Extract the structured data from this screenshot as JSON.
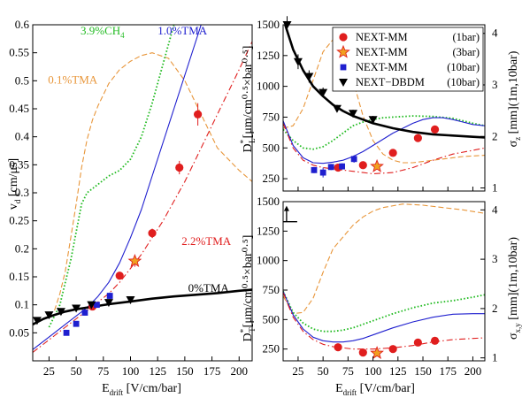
{
  "chart_data": [
    {
      "type": "line",
      "panel": "left",
      "xlabel": "E",
      "xlabel_sub": "drift",
      "xlabel_unit": " [V/cm/bar]",
      "ylabel": "v",
      "ylabel_sub": "d",
      "ylabel_unit": " [cm/μs]",
      "xlim": [
        10,
        212
      ],
      "ylim": [
        0,
        0.6
      ],
      "xticks": [
        25,
        50,
        75,
        100,
        125,
        150,
        175,
        200
      ],
      "yticks": [
        0.05,
        0.1,
        0.15,
        0.2,
        0.25,
        0.3,
        0.35,
        0.4,
        0.45,
        0.5,
        0.55,
        0.6
      ],
      "annotations": [
        {
          "text": "3.9%CH",
          "sub": "4",
          "color": "#22bb22",
          "x": 54,
          "y": 0.583
        },
        {
          "text": "1.0%TMA",
          "sub": "",
          "color": "#1f1fcf",
          "x": 125,
          "y": 0.583
        },
        {
          "text": "0.1%TMA",
          "sub": "",
          "color": "#e8963a",
          "x": 24,
          "y": 0.495
        },
        {
          "text": "2.2%TMA",
          "sub": "",
          "color": "#e01e1e",
          "x": 147,
          "y": 0.207
        },
        {
          "text": "0%TMA",
          "sub": "",
          "color": "#000000",
          "x": 153,
          "y": 0.123
        }
      ],
      "series": [
        {
          "color": "#e8963a",
          "style": "dashed",
          "width": 1.1,
          "x": [
            30,
            35,
            40,
            45,
            50,
            55,
            60,
            65,
            70,
            80,
            90,
            100,
            110,
            120,
            135,
            150,
            165,
            180,
            200,
            212
          ],
          "y": [
            0.09,
            0.12,
            0.16,
            0.22,
            0.28,
            0.345,
            0.395,
            0.43,
            0.455,
            0.495,
            0.52,
            0.535,
            0.545,
            0.55,
            0.54,
            0.5,
            0.44,
            0.38,
            0.34,
            0.32
          ]
        },
        {
          "color": "#22bb22",
          "style": "dotted",
          "width": 1.8,
          "x": [
            25,
            30,
            35,
            40,
            45,
            50,
            55,
            60,
            70,
            80,
            90,
            100,
            110,
            120,
            130,
            140
          ],
          "y": [
            0.06,
            0.08,
            0.1,
            0.14,
            0.18,
            0.23,
            0.28,
            0.3,
            0.315,
            0.33,
            0.34,
            0.36,
            0.4,
            0.46,
            0.53,
            0.6
          ]
        },
        {
          "color": "#1f1fcf",
          "style": "solid",
          "width": 1.1,
          "x": [
            10,
            20,
            30,
            40,
            50,
            60,
            70,
            80,
            90,
            100,
            110,
            120,
            130,
            140,
            150,
            160,
            165
          ],
          "y": [
            0.02,
            0.035,
            0.05,
            0.065,
            0.08,
            0.095,
            0.115,
            0.14,
            0.175,
            0.22,
            0.27,
            0.33,
            0.39,
            0.45,
            0.51,
            0.57,
            0.6
          ]
        },
        {
          "color": "#e01e1e",
          "style": "dashdot",
          "width": 1.1,
          "x": [
            10,
            20,
            30,
            40,
            50,
            60,
            70,
            80,
            90,
            100,
            110,
            120,
            130,
            140,
            150,
            160,
            170,
            180,
            190,
            200,
            212
          ],
          "y": [
            0.015,
            0.03,
            0.045,
            0.06,
            0.075,
            0.09,
            0.105,
            0.12,
            0.14,
            0.165,
            0.19,
            0.22,
            0.25,
            0.285,
            0.32,
            0.36,
            0.4,
            0.44,
            0.48,
            0.52,
            0.57
          ]
        },
        {
          "color": "#000000",
          "style": "solid",
          "width": 2.6,
          "x": [
            10,
            20,
            30,
            40,
            50,
            60,
            70,
            80,
            100,
            120,
            140,
            160,
            180,
            200,
            212
          ],
          "y": [
            0.065,
            0.075,
            0.082,
            0.088,
            0.092,
            0.095,
            0.098,
            0.101,
            0.106,
            0.111,
            0.115,
            0.118,
            0.121,
            0.125,
            0.127
          ]
        }
      ],
      "points": [
        {
          "label": "NEXT-MM (1bar)",
          "marker": "circle",
          "color": "#e01e1e",
          "x": [
            65,
            90,
            120,
            145,
            162
          ],
          "y": [
            0.097,
            0.152,
            0.228,
            0.345,
            0.44
          ],
          "yerr": [
            0.005,
            0.006,
            0.008,
            0.012,
            0.02
          ]
        },
        {
          "label": "NEXT-MM (3bar)",
          "marker": "star",
          "color": "#f0a020",
          "edge": "#e01e1e",
          "x": [
            104
          ],
          "y": [
            0.178
          ],
          "yerr": [
            0.01
          ]
        },
        {
          "label": "NEXT-MM (10bar)",
          "marker": "square",
          "color": "#1f1fcf",
          "x": [
            41,
            50,
            58,
            69,
            81
          ],
          "y": [
            0.05,
            0.066,
            0.086,
            0.1,
            0.116
          ],
          "yerr": [
            0.004,
            0.004,
            0.005,
            0.005,
            0.006
          ]
        },
        {
          "label": "NEXT-DBDM (10bar)",
          "marker": "triangle-down",
          "color": "#000000",
          "x": [
            14,
            25,
            36,
            50,
            64,
            80,
            100
          ],
          "y": [
            0.072,
            0.082,
            0.088,
            0.094,
            0.1,
            0.104,
            0.109
          ],
          "yerr": [
            0.003,
            0.003,
            0.003,
            0.003,
            0.003,
            0.003,
            0.003
          ]
        }
      ]
    },
    {
      "type": "line",
      "panel": "top-right",
      "ylabel": "D",
      "ylabel_sup": "*",
      "ylabel_sub": "L",
      "ylabel_unit": "[μm/cm⁰·⁵×bar⁰·⁵]",
      "y2label": "σ",
      "y2label_sub": "z",
      "y2label_unit": " [mm](1m,10bar)",
      "xlim": [
        10,
        212
      ],
      "ylim": [
        150,
        1500
      ],
      "yticks": [
        250,
        500,
        750,
        1000,
        1250,
        1500
      ],
      "y2ticks": [
        1,
        2,
        3,
        4
      ],
      "legend_position": "top-right",
      "series": [
        {
          "color": "#e8963a",
          "style": "dashed",
          "width": 1.1,
          "x": [
            10,
            20,
            30,
            40,
            50,
            60,
            70,
            80,
            90,
            100,
            110,
            120,
            130,
            140,
            150,
            170,
            190,
            212
          ],
          "y": [
            660,
            680,
            820,
            1050,
            1280,
            1380,
            1300,
            1050,
            760,
            560,
            450,
            400,
            380,
            380,
            390,
            410,
            430,
            440
          ]
        },
        {
          "color": "#22bb22",
          "style": "dotted",
          "width": 1.8,
          "x": [
            10,
            20,
            30,
            40,
            50,
            60,
            70,
            80,
            90,
            100,
            110,
            120,
            140,
            160,
            180,
            200,
            212
          ],
          "y": [
            650,
            560,
            500,
            490,
            510,
            560,
            620,
            680,
            710,
            730,
            745,
            750,
            760,
            755,
            740,
            700,
            680
          ]
        },
        {
          "color": "#1f1fcf",
          "style": "solid",
          "width": 1.1,
          "x": [
            10,
            20,
            30,
            40,
            50,
            60,
            70,
            80,
            90,
            100,
            110,
            120,
            130,
            140,
            150,
            160,
            170,
            180,
            190,
            200,
            212
          ],
          "y": [
            720,
            520,
            420,
            380,
            375,
            385,
            400,
            430,
            470,
            520,
            570,
            620,
            660,
            700,
            730,
            745,
            745,
            730,
            710,
            690,
            680
          ]
        },
        {
          "color": "#e01e1e",
          "style": "dashdot",
          "width": 1.1,
          "x": [
            10,
            20,
            30,
            40,
            50,
            60,
            70,
            80,
            90,
            100,
            120,
            140,
            160,
            180,
            200,
            212
          ],
          "y": [
            700,
            500,
            400,
            360,
            340,
            330,
            320,
            310,
            300,
            290,
            300,
            340,
            400,
            450,
            480,
            500
          ]
        },
        {
          "color": "#000000",
          "style": "solid",
          "width": 2.6,
          "x": [
            12,
            20,
            30,
            40,
            50,
            60,
            70,
            80,
            90,
            100,
            120,
            140,
            160,
            180,
            200,
            212
          ],
          "y": [
            1500,
            1300,
            1130,
            1000,
            920,
            850,
            800,
            760,
            730,
            700,
            660,
            630,
            610,
            600,
            590,
            585
          ]
        }
      ],
      "points": [
        {
          "label": "NEXT-MM",
          "label_note": "(1bar)",
          "marker": "circle",
          "color": "#e01e1e",
          "x": [
            65,
            90,
            120,
            145,
            162
          ],
          "y": [
            340,
            360,
            460,
            580,
            650
          ],
          "yerr": [
            20,
            20,
            25,
            30,
            30
          ]
        },
        {
          "label": "NEXT-MM",
          "label_note": "(3bar)",
          "marker": "star",
          "color": "#f0a020",
          "edge": "#e01e1e",
          "x": [
            104
          ],
          "y": [
            350
          ],
          "yerr": [
            20
          ]
        },
        {
          "label": "NEXT-MM",
          "label_note": "(10bar)",
          "marker": "square",
          "color": "#1f1fcf",
          "x": [
            41,
            50,
            58,
            69,
            81
          ],
          "y": [
            320,
            300,
            345,
            350,
            410
          ],
          "yerr": [
            25,
            40,
            25,
            25,
            30
          ]
        },
        {
          "label": "NEXT−DBDM",
          "label_note": "(10bar)",
          "marker": "triangle-down",
          "color": "#000000",
          "x": [
            14,
            25,
            36,
            50,
            64,
            80,
            100
          ],
          "y": [
            1500,
            1200,
            1080,
            950,
            820,
            780,
            730
          ],
          "yerr": [
            70,
            60,
            50,
            40,
            30,
            30,
            30
          ]
        }
      ]
    },
    {
      "type": "line",
      "panel": "bottom-right",
      "xlabel": "E",
      "xlabel_sub": "drift",
      "xlabel_unit": " [V/cm/bar]",
      "ylabel": "D",
      "ylabel_sup": "*",
      "ylabel_sub": "T",
      "ylabel_unit": "[μm/cm⁰·⁵×bar⁰·⁵]",
      "y2label": "σ",
      "y2label_sub": "x,y",
      "y2label_unit": " [mm](1m,10bar)",
      "xlim": [
        10,
        212
      ],
      "ylim": [
        150,
        1500
      ],
      "xticks": [
        25,
        50,
        75,
        100,
        125,
        150,
        175,
        200
      ],
      "yticks": [
        250,
        500,
        750,
        1000,
        1250,
        1500
      ],
      "y2ticks": [
        1,
        2,
        3,
        4
      ],
      "series": [
        {
          "color": "#e8963a",
          "style": "dashed",
          "width": 1.1,
          "x": [
            10,
            20,
            30,
            40,
            50,
            60,
            70,
            80,
            90,
            100,
            110,
            130,
            150,
            170,
            190,
            212
          ],
          "y": [
            700,
            550,
            560,
            680,
            900,
            1100,
            1200,
            1300,
            1370,
            1420,
            1450,
            1480,
            1470,
            1450,
            1430,
            1400
          ]
        },
        {
          "color": "#22bb22",
          "style": "dotted",
          "width": 1.8,
          "x": [
            10,
            20,
            30,
            40,
            50,
            60,
            70,
            80,
            90,
            100,
            120,
            140,
            160,
            180,
            200,
            212
          ],
          "y": [
            740,
            560,
            470,
            420,
            400,
            400,
            410,
            430,
            460,
            490,
            550,
            600,
            640,
            660,
            690,
            710
          ]
        },
        {
          "color": "#1f1fcf",
          "style": "solid",
          "width": 1.1,
          "x": [
            10,
            20,
            30,
            40,
            50,
            60,
            70,
            80,
            90,
            100,
            120,
            140,
            160,
            180,
            200,
            212
          ],
          "y": [
            740,
            540,
            420,
            350,
            320,
            310,
            310,
            320,
            340,
            370,
            430,
            480,
            520,
            545,
            550,
            550
          ]
        },
        {
          "color": "#e01e1e",
          "style": "dashdot",
          "width": 1.1,
          "x": [
            10,
            20,
            30,
            40,
            50,
            60,
            70,
            80,
            90,
            100,
            120,
            140,
            160,
            180,
            200,
            212
          ],
          "y": [
            730,
            520,
            400,
            330,
            290,
            270,
            260,
            250,
            250,
            250,
            260,
            280,
            310,
            330,
            340,
            345
          ]
        }
      ],
      "points": [
        {
          "label": "NEXT-MM (1bar)",
          "marker": "circle",
          "color": "#e01e1e",
          "x": [
            65,
            90,
            120,
            145,
            162
          ],
          "y": [
            265,
            220,
            250,
            305,
            320
          ],
          "yerr": [
            12,
            12,
            12,
            15,
            15
          ]
        },
        {
          "label": "NEXT-MM (3bar)",
          "marker": "star",
          "color": "#f0a020",
          "edge": "#e01e1e",
          "x": [
            104
          ],
          "y": [
            215
          ],
          "yerr": [
            12
          ]
        }
      ],
      "arrow_marker": {
        "x": 17,
        "y": 1330
      }
    }
  ]
}
